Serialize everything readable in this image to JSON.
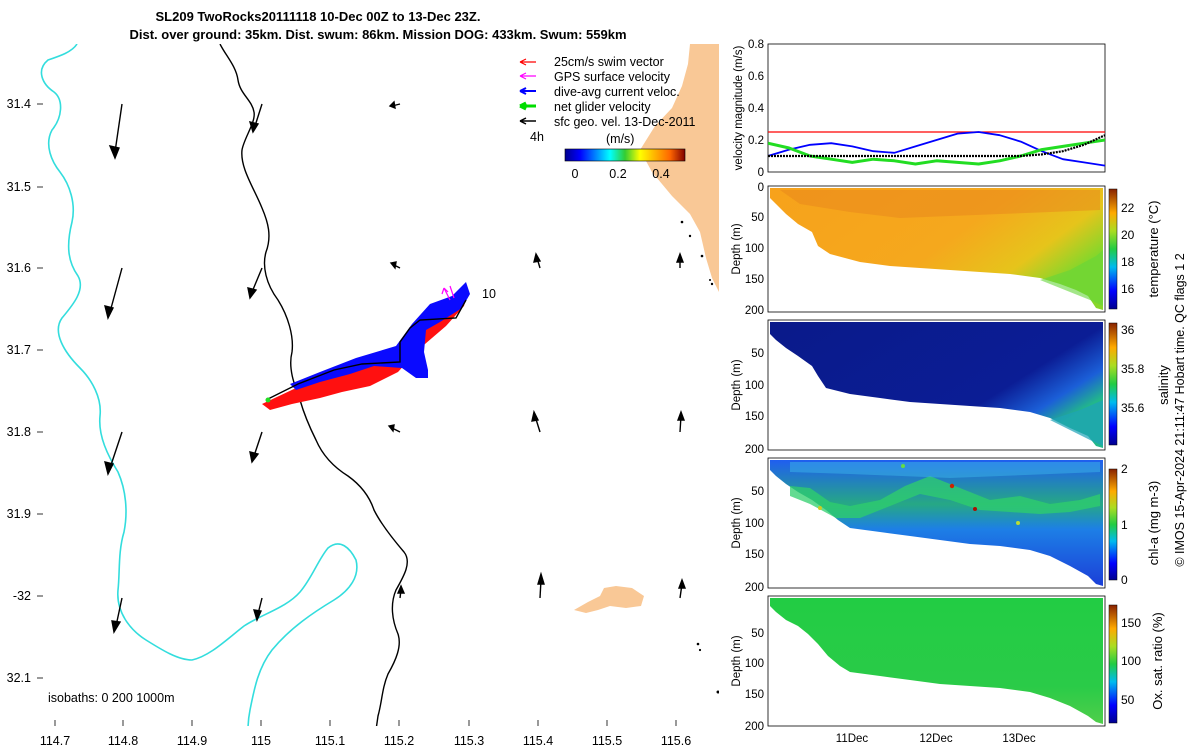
{
  "header": {
    "title_line1": "SL209 TwoRocks20111118 10-Dec 00Z to 13-Dec 23Z.",
    "title_line2": "Dist. over ground: 35km. Dist. swum: 86km. Mission DOG: 433km. Swum: 559km"
  },
  "map": {
    "lat_ticks": [
      "31.4",
      "31.5",
      "31.6",
      "31.7",
      "31.8",
      "31.9",
      "-32",
      "32.1"
    ],
    "lon_ticks": [
      "114.7",
      "114.8",
      "114.9",
      "115",
      "115.1",
      "115.2",
      "115.3",
      "115.4",
      "115.5",
      "115.6"
    ],
    "legend": [
      {
        "label": "25cm/s swim vector",
        "color": "#ff0000"
      },
      {
        "label": "GPS surface velocity",
        "color": "#ff00ff"
      },
      {
        "label": "dive-avg current veloc.",
        "color": "#0000ff"
      },
      {
        "label": "net glider velocity",
        "color": "#00dd00"
      },
      {
        "label": "sfc geo. vel. 13-Dec-2011",
        "color": "#000000"
      }
    ],
    "time_label": "4h",
    "colorbar": {
      "unit": "(m/s)",
      "ticks": [
        "0",
        "0.2",
        "0.4"
      ]
    },
    "point_label": "10",
    "isobaths_label": "isobaths: 0   200  1000m",
    "colors": {
      "land": "#f9c896",
      "isobath_200": "#000000",
      "isobath_1000": "#33dddd"
    }
  },
  "chart_data": [
    {
      "type": "line",
      "title": "",
      "ylabel": "velocity magnitude (m/s)",
      "ylim": [
        0,
        0.8
      ],
      "yticks": [
        "0",
        "0.2",
        "0.4",
        "0.6",
        "0.8"
      ],
      "x_days": [
        0,
        0.25,
        0.5,
        0.75,
        1,
        1.25,
        1.5,
        1.75,
        2,
        2.25,
        2.5,
        2.75,
        3,
        3.25,
        3.5,
        3.75,
        4
      ],
      "series": [
        {
          "name": "swim speed",
          "color": "#ff0000",
          "values": [
            0.25,
            0.25,
            0.25,
            0.25,
            0.25,
            0.25,
            0.25,
            0.25,
            0.25,
            0.25,
            0.25,
            0.25,
            0.25,
            0.25,
            0.25,
            0.25,
            0.25
          ]
        },
        {
          "name": "dive-avg current",
          "color": "#0000ff",
          "values": [
            0.1,
            0.14,
            0.17,
            0.18,
            0.16,
            0.13,
            0.12,
            0.16,
            0.2,
            0.24,
            0.25,
            0.23,
            0.19,
            0.13,
            0.08,
            0.06,
            0.04
          ]
        },
        {
          "name": "net glider velocity",
          "color": "#22dd22",
          "values": [
            0.18,
            0.15,
            0.1,
            0.08,
            0.06,
            0.08,
            0.07,
            0.05,
            0.07,
            0.06,
            0.05,
            0.07,
            0.1,
            0.14,
            0.16,
            0.18,
            0.2
          ]
        },
        {
          "name": "sfc geo. velocity",
          "color": "#000000",
          "values": [
            0.1,
            0.1,
            0.1,
            0.1,
            0.1,
            0.1,
            0.1,
            0.1,
            0.1,
            0.1,
            0.1,
            0.1,
            0.1,
            0.11,
            0.13,
            0.17,
            0.23
          ]
        }
      ]
    },
    {
      "type": "heatmap",
      "ylabel": "Depth (m)",
      "ylim": [
        200,
        0
      ],
      "yticks": [
        "0",
        "50",
        "100",
        "150",
        "200"
      ],
      "bottom_x_days": [
        0,
        0.5,
        0.75,
        1,
        1.5,
        2,
        2.5,
        3,
        3.5,
        4
      ],
      "bottom_depth_m": [
        30,
        40,
        95,
        110,
        120,
        130,
        135,
        135,
        150,
        200
      ],
      "cbar_label": "temperature (°C)",
      "cbar_ticks": [
        "16",
        "18",
        "20",
        "22"
      ],
      "cbar_range": [
        15,
        23.5
      ]
    },
    {
      "type": "heatmap",
      "ylabel": "Depth (m)",
      "ylim": [
        200,
        0
      ],
      "yticks": [
        "0",
        "50",
        "100",
        "150",
        "200"
      ],
      "cbar_label": "salinity",
      "cbar_ticks": [
        "35.6",
        "35.8",
        "36"
      ],
      "cbar_range": [
        35.45,
        36
      ]
    },
    {
      "type": "heatmap",
      "ylabel": "Depth (m)",
      "ylim": [
        200,
        0
      ],
      "yticks": [
        "0",
        "50",
        "100",
        "150",
        "200"
      ],
      "cbar_label": "chl-a (mg m-3)",
      "cbar_ticks": [
        "0",
        "1",
        "2"
      ],
      "cbar_range": [
        0,
        2
      ]
    },
    {
      "type": "heatmap",
      "ylabel": "Depth (m)",
      "ylim": [
        200,
        0
      ],
      "yticks": [
        "0",
        "50",
        "100",
        "150",
        "200"
      ],
      "xticks": [
        "11Dec",
        "12Dec",
        "13Dec"
      ],
      "cbar_label": "Ox. sat. ratio (%)",
      "cbar_ticks": [
        "50",
        "100",
        "150"
      ],
      "cbar_range": [
        20,
        175
      ]
    }
  ],
  "footer": {
    "credit": "© IMOS 15-Apr-2024 21:11:47 Hobart time. QC flags 1  2"
  }
}
